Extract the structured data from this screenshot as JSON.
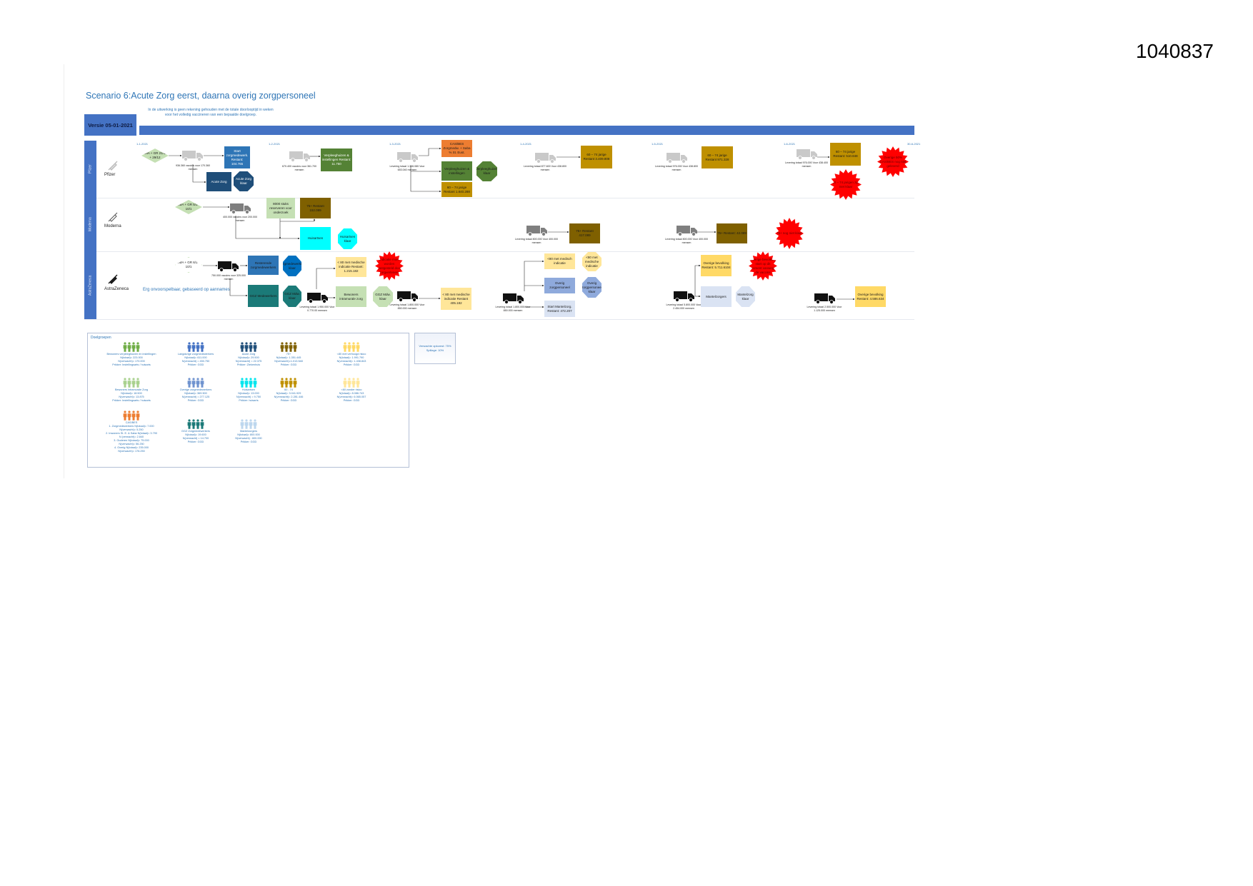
{
  "doc_number": "1040837",
  "title": "Scenario 6:Acute Zorg eerst, daarna overig zorgpersoneel",
  "note": "In de uitwerking is geen rekening gehouden met de totale doorlooptijd in weken voor het volledig vaccineren van een bepaalde doelgroep.",
  "version": "Versie 05-01-2021",
  "timeline_ticks": [
    "1-1-2021",
    "1-2-2021",
    "1-3-2021",
    "1-4-2021",
    "1-5-2021",
    "1-6-2021",
    "30-6-2021"
  ],
  "colors": {
    "lane": "#4472c4",
    "blue": "#2e75b6",
    "darkblue": "#1f4e79",
    "green": "#548235",
    "lightgreen": "#c5e0b4",
    "orange": "#ed7d31",
    "gold": "#bf9000",
    "brown": "#7f6000",
    "cyan": "#00ffff",
    "yellow": "#ffe699",
    "teal": "#1b7a78",
    "periwinkle": "#8faadc",
    "paleblue": "#dae3f3",
    "red": "#ff0000"
  },
  "lanes": {
    "pfizer": {
      "label": "Pfizer",
      "name": "Pfizer"
    },
    "moderna": {
      "label": "Moderna",
      "name": "Moderna"
    },
    "az": {
      "label": "AstraZeneca",
      "name": "AstraZeneca",
      "note": "Erg onvoorspelbaar, gebaseerd op aannames"
    }
  },
  "pfizer": {
    "approval": "EMA + GR 21/12 + 29/12",
    "d1": "936.360 vaccins voor 170.360 mensen",
    "start_zorg": "Start zorgmedewerk. Restant: 104.765",
    "acute": "Acute Zorg",
    "acute_done": "Acute Zorg klaar",
    "d2": "670.400 vaccins voor 361.700 mensen",
    "verpleeg1": "Verpleeghuizen & instellingen Restant: 11.750",
    "d3": "Levering totaal 1.306.080 Voor 653.040 mensen",
    "casbes": "CAS/BES Zorgmedw. + Saba % St. Eust.",
    "verpleeg2": "Verpleeghuizen & instellingen",
    "verpleeg_done": "Verpleeghuizen klaar",
    "age1": "60 – 74 jarige Restant 1.840.288",
    "d4": "Levering totaal 877.600 Voor 438.800 mensen",
    "age2": "60 – 74 jarige Restant 3.409.808",
    "d5": "Levering totaal 976.000 Voor 438.800 mensen",
    "age3": "60 – 74 jarige Restant 971.328",
    "d6": "Levering totaal 976.000 Voor 438.400 mensen",
    "age4": "60 – 74 jarige Restant: 510.848",
    "star_age": "60 – 74 jarigen zijn niet klaar",
    "star_cas": "Overige 50% CAS/BES nog niet geleverd"
  },
  "moderna": {
    "approval": "EMA + GR 5/1 + 10/1",
    "d1": "400.000 vaccins voor 200.000 mensen",
    "reserve": "8000 stuks reserveren voor onderzoek",
    "r75a": "75+ Restant 152.089",
    "huisartsen": "Huisartsen",
    "huisartsen_done": "Huisartsen klaar",
    "d2": "Levering totaal 800.000 Voor 400.000 mensen",
    "r75b": "75+ Restant 417.089",
    "d3": "Levering totaal 800.000 Voor 400.000 mensen",
    "r75c": "75+ Restant: 42.089",
    "star": "75+ nog niet klaar"
  },
  "az": {
    "approval": "EMA + GR 6/1 + 10/1",
    "d1": "750.000 vaccins voor 325.000 mensen",
    "rest_zorg": "Resterende zorgmedewerkers",
    "zorg_done": "Zorgmedewerkers klaar",
    "ggz": "GGZ Medewerkers",
    "ggz_done": "GGZ Mdw. klaar",
    "d2": "Levering totaal 1.950.000 Voor 0.770.00 mensen",
    "ind1": "< 80 met medische indicatie Restant: 1.215.182",
    "star_ind": "Indicatie moet worden vastgesteld door zorgverleners",
    "intramuraal": "Bewoners intramurale zorg",
    "ggz_done2": "GGZ Mdw. klaar",
    "d3": "Levering totaal 1.800.000 Voor 850.000 mensen",
    "ind2": "< 80 met medische indicatie Restant 405.182",
    "d4": "Levering totaal 1.800.000 Voor 850.000 mensen",
    "ind3": "<80 met medisch indicatie",
    "ind3_done": "<80 met medische indicatie",
    "overig": "Overig zorgpersoneel",
    "overig_done": "Overig zorgpersoneel klaar",
    "mantel_start": "Start Mantelzorg. Restant: 472.207",
    "bev1": "Overige bevolking Restant: 5.711.6104",
    "star_bev": "Overige bevolking start op dit moment vanwege de vaccins",
    "d5": "Levering totaal 5.800.000 Voor 2.454.000 mensen",
    "mantel": "Mantelzorgers",
    "mantel_done": "Mantelzorg klaar",
    "d6": "Levering totaal 2.500.000 Voor 1.125.000 mensen",
    "bev2": "Overige bevolking Restant: 4.586.634"
  },
  "legend": {
    "title": "Doelgroepen",
    "groups": [
      {
        "name": "Bewoners verpleeghuizen en instellingen",
        "l1": "N(totaal)= 223.000",
        "l2": "N(verwacht)= 170.000",
        "l3": "Prikker: Instellingsarts / huisarts",
        "color": "#70ad47"
      },
      {
        "name": "Langdurige zorgmedewerkers",
        "l1": "N(totaal)= 611.000",
        "l2": "N(verwacht) = 450.750",
        "l3": "Prikker: GGD",
        "color": "#4472c4"
      },
      {
        "name": "Acute Zorg",
        "l1": "N(totaal)= 29.500",
        "l2": "N(verwacht) = 22.375",
        "l3": "Prikker: Ziekenhuis",
        "color": "#1f4e79"
      },
      {
        "name": "75+",
        "l1": "N(totaal)= 1.351.445",
        "l2": "N(verwacht)=1.013.548",
        "l3": "Prikker: GGD",
        "color": "#7f6000"
      },
      {
        "name": "<80 met verhoogd risico",
        "l1": "N(totaal)= 1.991.790",
        "l2": "N(verwacht)= 1.438.843",
        "l3": "Prikker: GGD",
        "color": "#ffd966"
      },
      {
        "name": "Bewoners Intramurale Zorg",
        "l1": "N(totaal)= 18.500",
        "l2": "N(verwacht)= 13.875",
        "l3": "Prikker: Instellingsarts / huisarts",
        "color": "#a9d18e"
      },
      {
        "name": "Overige zorgmedewerkers",
        "l1": "N(totaal)= 369.500",
        "l2": "N(verwacht) = 277.125",
        "l3": "Prikker: GGD",
        "color": "#6f93cf"
      },
      {
        "name": "Huisartsen",
        "l1": "N(totaal)= 13.000",
        "l2": "N(verwacht) = 9.750",
        "l3": "Prikker: huisarts",
        "color": "#00e5ee"
      },
      {
        "name": "60 - 74",
        "l1": "N(totaal)= 3.041.929",
        "l2": "N(verwacht)= 2.281.446",
        "l3": "Prikker: GGD",
        "color": "#bf9000"
      },
      {
        "name": "<60 zonder risico",
        "l1": "N(totaal)= 8.086.743",
        "l2": "N(verwacht)= 6.065.057",
        "l3": "Prikker: GGD",
        "color": "#ffe699"
      },
      {
        "name": "CAS/BES",
        "l1": "1. Zorgmedewerkers N(totaal)= 7.000",
        "l2": "N(verwacht)= 5.250",
        "l3": "2. Inwoners St. E. & Saba N(totaal)= 3.790",
        "l4": "N (verwacht)= 2.840",
        "l5": "3. Ouderen N(totaal)= 75.000",
        "l6": "N(verwacht)= 56.250",
        "l7": "4. Overig N(totaal)= 235.000",
        "l8": "N(verwacht)= 176.250",
        "color": "#ed7d31"
      },
      {
        "name": "GGZ Zorgmedewerkers",
        "l1": "N(totaal)= 19.600",
        "l2": "N(verwacht) = 14.700",
        "l3": "Prikker: GGD",
        "color": "#1b7a78"
      },
      {
        "name": "Mantelzorgers",
        "l1": "N(totaal)= 800.000",
        "l2": "N(verwacht) : 600.000",
        "l3": "Prikker: GGD",
        "color": "#bdd7ee"
      }
    ]
  },
  "params": {
    "opkomst": "Verwachte opkomst: 75%",
    "spillage": "Spillage: 10%"
  }
}
